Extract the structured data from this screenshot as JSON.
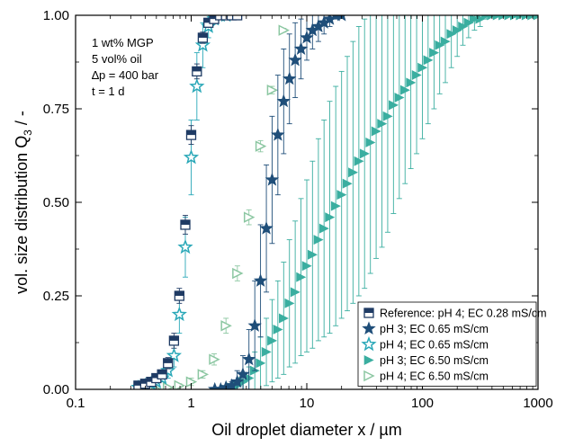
{
  "chart_data": {
    "type": "scatter",
    "xlabel": "Oil droplet diameter x / µm",
    "ylabel": "vol. size distribution Q",
    "ylabel_sub": "3",
    "ylabel_suffix": " / -",
    "x_scale": "log",
    "xlim": [
      0.1,
      1000
    ],
    "ylim": [
      0.0,
      1.0
    ],
    "x_ticks": [
      0.1,
      1,
      10,
      100,
      1000
    ],
    "x_tick_labels": [
      "0.1",
      "1",
      "10",
      "100",
      "1000"
    ],
    "y_ticks": [
      0.0,
      0.25,
      0.5,
      0.75,
      1.0
    ],
    "y_tick_labels": [
      "0.00",
      "0.25",
      "0.50",
      "0.75",
      "1.00"
    ],
    "grid": false,
    "legend_position": "bottom-right",
    "annotations": [
      "1 wt% MGP",
      "5 vol% oil",
      "∆p = 400 bar",
      "t = 1 d"
    ],
    "series": [
      {
        "name": "Reference: pH 4; EC 0.28 mS/cm",
        "marker": "square-half",
        "color": "#1f3b64",
        "x": [
          0.35,
          0.4,
          0.45,
          0.5,
          0.56,
          0.63,
          0.71,
          0.79,
          0.89,
          1.0,
          1.12,
          1.26,
          1.41,
          1.58,
          1.78,
          2.0,
          2.24,
          2.5
        ],
        "y": [
          0.01,
          0.015,
          0.02,
          0.03,
          0.04,
          0.07,
          0.13,
          0.25,
          0.44,
          0.68,
          0.85,
          0.94,
          0.98,
          0.99,
          1.0,
          1.0,
          1.0,
          1.0
        ],
        "err": [
          0.005,
          0.005,
          0.007,
          0.01,
          0.01,
          0.015,
          0.02,
          0.02,
          0.025,
          0.025,
          0.02,
          0.015,
          0.01,
          0.005,
          0.003,
          0.0,
          0.0,
          0.0
        ]
      },
      {
        "name": "pH 3; EC 0.65 mS/cm",
        "marker": "star",
        "color": "#1f4e79",
        "x": [
          1.6,
          1.8,
          2.0,
          2.24,
          2.5,
          2.8,
          3.16,
          3.55,
          3.98,
          4.47,
          5.01,
          5.62,
          6.31,
          7.08,
          7.94,
          8.91,
          10.0,
          11.2,
          12.6,
          14.1,
          15.8,
          17.8,
          20.0
        ],
        "y": [
          0.0,
          0.0,
          0.005,
          0.01,
          0.02,
          0.04,
          0.08,
          0.17,
          0.29,
          0.43,
          0.56,
          0.68,
          0.77,
          0.83,
          0.88,
          0.91,
          0.94,
          0.96,
          0.97,
          0.98,
          0.99,
          1.0,
          1.0
        ],
        "err": [
          0.0,
          0.0,
          0.003,
          0.01,
          0.03,
          0.05,
          0.08,
          0.12,
          0.15,
          0.17,
          0.17,
          0.16,
          0.14,
          0.12,
          0.1,
          0.08,
          0.06,
          0.05,
          0.04,
          0.03,
          0.02,
          0.01,
          0.0
        ]
      },
      {
        "name": "pH 4; EC 0.65 mS/cm",
        "marker": "star-open",
        "color": "#2aa8b8",
        "x": [
          0.35,
          0.4,
          0.45,
          0.5,
          0.56,
          0.63,
          0.71,
          0.79,
          0.89,
          1.0,
          1.12,
          1.26,
          1.41,
          1.58,
          1.78,
          2.0
        ],
        "y": [
          0.005,
          0.01,
          0.015,
          0.02,
          0.03,
          0.05,
          0.09,
          0.2,
          0.38,
          0.62,
          0.81,
          0.92,
          0.97,
          0.99,
          1.0,
          1.0
        ],
        "err": [
          0.005,
          0.005,
          0.005,
          0.008,
          0.01,
          0.02,
          0.03,
          0.05,
          0.08,
          0.1,
          0.09,
          0.06,
          0.03,
          0.01,
          0.0,
          0.0
        ]
      },
      {
        "name": "pH 3; EC 6.50 mS/cm",
        "marker": "triangle-right",
        "color": "#3aaea0",
        "x": [
          2.0,
          2.24,
          2.51,
          2.82,
          3.16,
          3.55,
          3.98,
          4.47,
          5.01,
          5.62,
          6.31,
          7.08,
          7.94,
          8.91,
          10.0,
          11.2,
          12.6,
          14.1,
          15.8,
          17.8,
          20.0,
          22.4,
          25.1,
          28.2,
          31.6,
          35.5,
          39.8,
          44.7,
          50.1,
          56.2,
          63.1,
          70.8,
          79.4,
          89.1,
          100,
          112,
          126,
          141,
          158,
          178,
          200,
          224,
          251,
          282,
          316,
          355,
          398,
          447,
          501,
          562,
          631,
          708,
          794,
          891,
          1000
        ],
        "y": [
          0.0,
          0.005,
          0.01,
          0.02,
          0.03,
          0.05,
          0.07,
          0.1,
          0.13,
          0.16,
          0.19,
          0.23,
          0.26,
          0.3,
          0.33,
          0.36,
          0.4,
          0.43,
          0.46,
          0.49,
          0.52,
          0.55,
          0.58,
          0.61,
          0.63,
          0.66,
          0.69,
          0.71,
          0.73,
          0.76,
          0.78,
          0.8,
          0.82,
          0.84,
          0.86,
          0.88,
          0.9,
          0.92,
          0.93,
          0.95,
          0.96,
          0.97,
          0.98,
          0.99,
          0.99,
          1.0,
          1.0,
          1.0,
          1.0,
          1.0,
          1.0,
          1.0,
          1.0,
          1.0,
          1.0
        ],
        "err": [
          0.0,
          0.005,
          0.01,
          0.02,
          0.03,
          0.05,
          0.07,
          0.09,
          0.11,
          0.13,
          0.15,
          0.17,
          0.19,
          0.21,
          0.23,
          0.25,
          0.27,
          0.29,
          0.31,
          0.32,
          0.33,
          0.34,
          0.35,
          0.36,
          0.36,
          0.35,
          0.34,
          0.33,
          0.31,
          0.29,
          0.27,
          0.25,
          0.23,
          0.21,
          0.19,
          0.17,
          0.15,
          0.13,
          0.11,
          0.09,
          0.07,
          0.05,
          0.04,
          0.03,
          0.02,
          0.01,
          0.0,
          0.0,
          0.0,
          0.0,
          0.0,
          0.0,
          0.0,
          0.0,
          0.0
        ]
      },
      {
        "name": "pH 4; EC 6.50 mS/cm",
        "marker": "triangle-right-open",
        "color": "#8cc7a2",
        "x": [
          0.5,
          0.63,
          0.79,
          1.0,
          1.26,
          1.58,
          2.0,
          2.51,
          3.16,
          3.98,
          5.01,
          6.31
        ],
        "y": [
          0.0,
          0.005,
          0.01,
          0.02,
          0.04,
          0.08,
          0.17,
          0.31,
          0.46,
          0.65,
          0.8,
          0.96
        ],
        "err": [
          0.0,
          0.0,
          0.005,
          0.01,
          0.01,
          0.015,
          0.02,
          0.02,
          0.02,
          0.015,
          0.01,
          0.005
        ]
      }
    ]
  }
}
